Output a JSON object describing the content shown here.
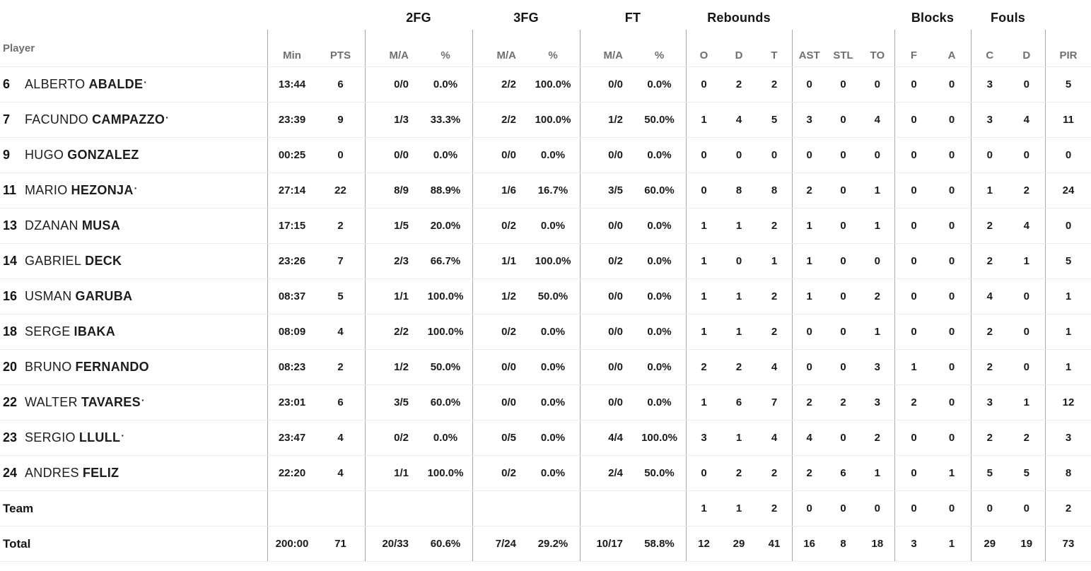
{
  "table": {
    "player_header": "Player",
    "group_headers": {
      "fg2": "2FG",
      "fg3": "3FG",
      "ft": "FT",
      "rebounds": "Rebounds",
      "blocks": "Blocks",
      "fouls": "Fouls"
    },
    "col_headers": {
      "min": "Min",
      "pts": "PTS",
      "ma": "M/A",
      "pct": "%",
      "o": "O",
      "d": "D",
      "t": "T",
      "ast": "AST",
      "stl": "STL",
      "to": "TO",
      "f": "F",
      "a": "A",
      "c": "C",
      "cd": "D",
      "pir": "PIR"
    },
    "starter_mark": "·",
    "rows": [
      {
        "num": "6",
        "first": "ALBERTO",
        "last": "ABALDE",
        "mark": "·",
        "min": "13:44",
        "pts": "6",
        "fg2_ma": "0/0",
        "fg2_pct": "0.0%",
        "fg3_ma": "2/2",
        "fg3_pct": "100.0%",
        "ft_ma": "0/0",
        "ft_pct": "0.0%",
        "reb_o": "0",
        "reb_d": "2",
        "reb_t": "2",
        "ast": "0",
        "stl": "0",
        "to": "0",
        "blk_f": "0",
        "blk_a": "0",
        "foul_c": "3",
        "foul_d": "0",
        "pir": "5"
      },
      {
        "num": "7",
        "first": "FACUNDO",
        "last": "CAMPAZZO",
        "mark": "·",
        "min": "23:39",
        "pts": "9",
        "fg2_ma": "1/3",
        "fg2_pct": "33.3%",
        "fg3_ma": "2/2",
        "fg3_pct": "100.0%",
        "ft_ma": "1/2",
        "ft_pct": "50.0%",
        "reb_o": "1",
        "reb_d": "4",
        "reb_t": "5",
        "ast": "3",
        "stl": "0",
        "to": "4",
        "blk_f": "0",
        "blk_a": "0",
        "foul_c": "3",
        "foul_d": "4",
        "pir": "11"
      },
      {
        "num": "9",
        "first": "HUGO",
        "last": "GONZALEZ",
        "mark": "",
        "min": "00:25",
        "pts": "0",
        "fg2_ma": "0/0",
        "fg2_pct": "0.0%",
        "fg3_ma": "0/0",
        "fg3_pct": "0.0%",
        "ft_ma": "0/0",
        "ft_pct": "0.0%",
        "reb_o": "0",
        "reb_d": "0",
        "reb_t": "0",
        "ast": "0",
        "stl": "0",
        "to": "0",
        "blk_f": "0",
        "blk_a": "0",
        "foul_c": "0",
        "foul_d": "0",
        "pir": "0"
      },
      {
        "num": "11",
        "first": "MARIO",
        "last": "HEZONJA",
        "mark": "·",
        "min": "27:14",
        "pts": "22",
        "fg2_ma": "8/9",
        "fg2_pct": "88.9%",
        "fg3_ma": "1/6",
        "fg3_pct": "16.7%",
        "ft_ma": "3/5",
        "ft_pct": "60.0%",
        "reb_o": "0",
        "reb_d": "8",
        "reb_t": "8",
        "ast": "2",
        "stl": "0",
        "to": "1",
        "blk_f": "0",
        "blk_a": "0",
        "foul_c": "1",
        "foul_d": "2",
        "pir": "24"
      },
      {
        "num": "13",
        "first": "DZANAN",
        "last": "MUSA",
        "mark": "",
        "min": "17:15",
        "pts": "2",
        "fg2_ma": "1/5",
        "fg2_pct": "20.0%",
        "fg3_ma": "0/2",
        "fg3_pct": "0.0%",
        "ft_ma": "0/0",
        "ft_pct": "0.0%",
        "reb_o": "1",
        "reb_d": "1",
        "reb_t": "2",
        "ast": "1",
        "stl": "0",
        "to": "1",
        "blk_f": "0",
        "blk_a": "0",
        "foul_c": "2",
        "foul_d": "4",
        "pir": "0"
      },
      {
        "num": "14",
        "first": "GABRIEL",
        "last": "DECK",
        "mark": "",
        "min": "23:26",
        "pts": "7",
        "fg2_ma": "2/3",
        "fg2_pct": "66.7%",
        "fg3_ma": "1/1",
        "fg3_pct": "100.0%",
        "ft_ma": "0/2",
        "ft_pct": "0.0%",
        "reb_o": "1",
        "reb_d": "0",
        "reb_t": "1",
        "ast": "1",
        "stl": "0",
        "to": "0",
        "blk_f": "0",
        "blk_a": "0",
        "foul_c": "2",
        "foul_d": "1",
        "pir": "5"
      },
      {
        "num": "16",
        "first": "USMAN",
        "last": "GARUBA",
        "mark": "",
        "min": "08:37",
        "pts": "5",
        "fg2_ma": "1/1",
        "fg2_pct": "100.0%",
        "fg3_ma": "1/2",
        "fg3_pct": "50.0%",
        "ft_ma": "0/0",
        "ft_pct": "0.0%",
        "reb_o": "1",
        "reb_d": "1",
        "reb_t": "2",
        "ast": "1",
        "stl": "0",
        "to": "2",
        "blk_f": "0",
        "blk_a": "0",
        "foul_c": "4",
        "foul_d": "0",
        "pir": "1"
      },
      {
        "num": "18",
        "first": "SERGE",
        "last": "IBAKA",
        "mark": "",
        "min": "08:09",
        "pts": "4",
        "fg2_ma": "2/2",
        "fg2_pct": "100.0%",
        "fg3_ma": "0/2",
        "fg3_pct": "0.0%",
        "ft_ma": "0/0",
        "ft_pct": "0.0%",
        "reb_o": "1",
        "reb_d": "1",
        "reb_t": "2",
        "ast": "0",
        "stl": "0",
        "to": "1",
        "blk_f": "0",
        "blk_a": "0",
        "foul_c": "2",
        "foul_d": "0",
        "pir": "1"
      },
      {
        "num": "20",
        "first": "BRUNO",
        "last": "FERNANDO",
        "mark": "",
        "min": "08:23",
        "pts": "2",
        "fg2_ma": "1/2",
        "fg2_pct": "50.0%",
        "fg3_ma": "0/0",
        "fg3_pct": "0.0%",
        "ft_ma": "0/0",
        "ft_pct": "0.0%",
        "reb_o": "2",
        "reb_d": "2",
        "reb_t": "4",
        "ast": "0",
        "stl": "0",
        "to": "3",
        "blk_f": "1",
        "blk_a": "0",
        "foul_c": "2",
        "foul_d": "0",
        "pir": "1"
      },
      {
        "num": "22",
        "first": "WALTER",
        "last": "TAVARES",
        "mark": "·",
        "min": "23:01",
        "pts": "6",
        "fg2_ma": "3/5",
        "fg2_pct": "60.0%",
        "fg3_ma": "0/0",
        "fg3_pct": "0.0%",
        "ft_ma": "0/0",
        "ft_pct": "0.0%",
        "reb_o": "1",
        "reb_d": "6",
        "reb_t": "7",
        "ast": "2",
        "stl": "2",
        "to": "3",
        "blk_f": "2",
        "blk_a": "0",
        "foul_c": "3",
        "foul_d": "1",
        "pir": "12"
      },
      {
        "num": "23",
        "first": "SERGIO",
        "last": "LLULL",
        "mark": "·",
        "min": "23:47",
        "pts": "4",
        "fg2_ma": "0/2",
        "fg2_pct": "0.0%",
        "fg3_ma": "0/5",
        "fg3_pct": "0.0%",
        "ft_ma": "4/4",
        "ft_pct": "100.0%",
        "reb_o": "3",
        "reb_d": "1",
        "reb_t": "4",
        "ast": "4",
        "stl": "0",
        "to": "2",
        "blk_f": "0",
        "blk_a": "0",
        "foul_c": "2",
        "foul_d": "2",
        "pir": "3"
      },
      {
        "num": "24",
        "first": "ANDRES",
        "last": "FELIZ",
        "mark": "",
        "min": "22:20",
        "pts": "4",
        "fg2_ma": "1/1",
        "fg2_pct": "100.0%",
        "fg3_ma": "0/2",
        "fg3_pct": "0.0%",
        "ft_ma": "2/4",
        "ft_pct": "50.0%",
        "reb_o": "0",
        "reb_d": "2",
        "reb_t": "2",
        "ast": "2",
        "stl": "6",
        "to": "1",
        "blk_f": "0",
        "blk_a": "1",
        "foul_c": "5",
        "foul_d": "5",
        "pir": "8"
      }
    ],
    "team_row": {
      "label": "Team",
      "reb_o": "1",
      "reb_d": "1",
      "reb_t": "2",
      "ast": "0",
      "stl": "0",
      "to": "0",
      "blk_f": "0",
      "blk_a": "0",
      "foul_c": "0",
      "foul_d": "0",
      "pir": "2"
    },
    "total_row": {
      "label": "Total",
      "min": "200:00",
      "pts": "71",
      "fg2_ma": "20/33",
      "fg2_pct": "60.6%",
      "fg3_ma": "7/24",
      "fg3_pct": "29.2%",
      "ft_ma": "10/17",
      "ft_pct": "58.8%",
      "reb_o": "12",
      "reb_d": "29",
      "reb_t": "41",
      "ast": "16",
      "stl": "8",
      "to": "18",
      "blk_f": "3",
      "blk_a": "1",
      "foul_c": "29",
      "foul_d": "19",
      "pir": "73"
    }
  }
}
